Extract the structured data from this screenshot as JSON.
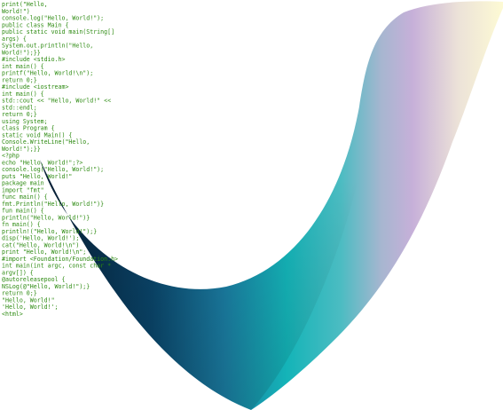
{
  "code_lines": [
    "print(\"Hello,",
    "World!\")",
    "console.log(\"Hello, World!\");",
    "public class Main {",
    "    public static void main(String[]",
    "  args) {",
    "        System.out.println(\"Hello,",
    "  World!\");}}",
    "  #include <stdio.h>",
    "  int main() {",
    "      printf(\"Hello, World!\\n\");",
    "      return 0;}",
    "   #include <iostream>",
    "   int main() {",
    "       std::cout << \"Hello, World!\" <<",
    "   std::endl;",
    "       return 0;}",
    "     using System;",
    "     class Program {",
    "         static void Main() {",
    "             Console.WriteLine(\"Hello,",
    "     World!\");}}",
    "      <?php",
    "      echo \"Hello, World!\";?>",
    "       console.log(\"Hello, World!\");",
    "        puts \"Hello, World!\"",
    "         package main",
    "         import \"fmt\"",
    "          func main() {",
    "              fmt.Println(\"Hello, World!\")}",
    "           fun main() {",
    "               println(\"Hello, World!\")}",
    "            fn main() {",
    "                println!(\"Hello, World!\");}",
    "             disp('Hello, World!');",
    "              cat(\"Hello, World!\\n\")",
    "               print \"Hello, World!\\n\";",
    "                #import <Foundation/Foundation.h>",
    "                int main(int argc, const char *",
    "                 argv[]) {",
    "                  @autoreleasepool {",
    "                      NSLog(@\"Hello, World!\");}",
    "                   return 0;}",
    "                    \"Hello, World!\"",
    "                     'Hello, World!';",
    "                      <html>"
  ],
  "colors": {
    "code_text": "#2c8a10",
    "ribbon_dark": "#0a3d5e",
    "ribbon_mid": "#16b5b5",
    "ribbon_purple": "#c4b2d8",
    "ribbon_light": "#fdf8d2"
  }
}
